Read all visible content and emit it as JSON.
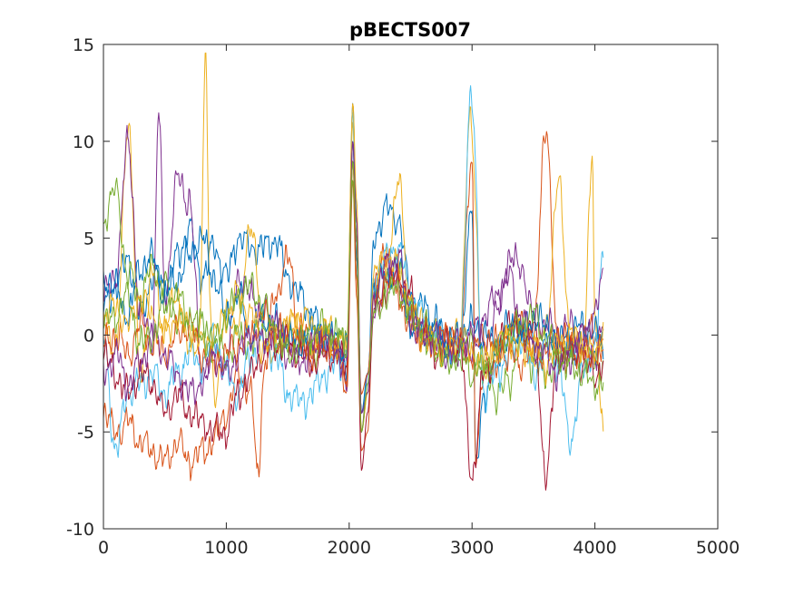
{
  "chart_data": {
    "type": "line",
    "title": "pBECTS007",
    "xlabel": "",
    "ylabel": "",
    "xlim": [
      0,
      5000
    ],
    "ylim": [
      -10,
      15
    ],
    "x_ticks": [
      0,
      1000,
      2000,
      3000,
      4000,
      5000
    ],
    "y_ticks": [
      -10,
      -5,
      0,
      5,
      10,
      15
    ],
    "x_tick_labels": [
      "0",
      "1000",
      "2000",
      "3000",
      "4000",
      "5000"
    ],
    "y_tick_labels": [
      "-10",
      "-5",
      "0",
      "5",
      "10",
      "15"
    ],
    "grid": false,
    "legend": "none",
    "sample_count": 4096,
    "series_colors": [
      "#0072BD",
      "#D95319",
      "#EDB120",
      "#7E2F8E",
      "#77AC30",
      "#4DBEEE",
      "#A2142F"
    ],
    "series": [
      {
        "x": [
          0,
          100,
          200,
          300,
          400,
          500,
          600,
          700,
          800,
          900,
          1000,
          1100,
          1200,
          1300,
          1400,
          1500,
          1600,
          1700,
          1800,
          1900,
          1980,
          2030,
          2060,
          2100,
          2150,
          2200,
          2300,
          2400,
          2500,
          2600,
          2700,
          2800,
          2900,
          3000,
          3030,
          3100,
          3200,
          3300,
          3400,
          3500,
          3600,
          3700,
          3800,
          3900,
          4000,
          4070
        ],
        "y": [
          1.5,
          2.5,
          4,
          1,
          3,
          2.5,
          4,
          5.5,
          3,
          4.5,
          3,
          5,
          4.5,
          4.5,
          5,
          3,
          2,
          1,
          0,
          -0.5,
          -1.5,
          12,
          6,
          -4,
          -3,
          5,
          6.5,
          6,
          2,
          1.5,
          0.5,
          -0.5,
          -0.8,
          7,
          -7,
          -3,
          -1,
          0,
          0.5,
          -0.5,
          -0.5,
          -0.8,
          -0.7,
          -0.5,
          -1,
          -1
        ]
      },
      {
        "x": [
          0,
          100,
          200,
          300,
          400,
          500,
          600,
          700,
          800,
          900,
          1000,
          1100,
          1200,
          1260,
          1300,
          1400,
          1500,
          1600,
          1700,
          1800,
          1900,
          1980,
          2030,
          2060,
          2100,
          2150,
          2200,
          2300,
          2400,
          2500,
          2600,
          2700,
          2800,
          2900,
          3000,
          3030,
          3100,
          3200,
          3300,
          3400,
          3500,
          3600,
          3700,
          3800,
          3900,
          4000,
          4070
        ],
        "y": [
          -4,
          -5,
          -4.5,
          -5.5,
          -6,
          -6.5,
          -5.5,
          -6.5,
          -6,
          -5.5,
          -4,
          -2,
          -3,
          -7.4,
          -2,
          2,
          4,
          0,
          -1,
          -0.5,
          -0.5,
          -3,
          8,
          2,
          -6,
          -5,
          2,
          4.5,
          2,
          0.5,
          0,
          -0.5,
          0,
          -0.5,
          9,
          -6,
          -2,
          -1.5,
          0,
          0.5,
          -0.5,
          11,
          -1,
          -1,
          0,
          0,
          -0.5
        ]
      },
      {
        "x": [
          0,
          100,
          200,
          300,
          400,
          500,
          600,
          700,
          780,
          830,
          870,
          900,
          1000,
          1100,
          1200,
          1300,
          1400,
          1500,
          1600,
          1700,
          1800,
          1900,
          1980,
          2030,
          2060,
          2100,
          2150,
          2200,
          2300,
          2400,
          2500,
          2600,
          2700,
          2800,
          2900,
          2980,
          3100,
          3200,
          3300,
          3400,
          3500,
          3600,
          3700,
          3800,
          3900,
          3980,
          4000,
          4070
        ],
        "y": [
          1,
          -1,
          11,
          -2,
          3,
          0.5,
          2,
          -1,
          0,
          14,
          1.5,
          -3,
          1,
          0.5,
          6,
          0,
          -1,
          0.5,
          0,
          -1,
          0.5,
          -0.5,
          -1,
          11,
          4,
          -4,
          -3,
          3,
          3.5,
          8,
          1,
          0.5,
          0,
          -0.5,
          0,
          11,
          -2,
          -1,
          0,
          0.5,
          -1,
          0,
          8,
          0,
          -1,
          9.4,
          0,
          -5
        ]
      },
      {
        "x": [
          0,
          100,
          200,
          300,
          400,
          450,
          500,
          600,
          700,
          800,
          900,
          1000,
          1100,
          1200,
          1300,
          1400,
          1500,
          1600,
          1700,
          1800,
          1900,
          1980,
          2030,
          2060,
          2100,
          2150,
          2200,
          2300,
          2400,
          2500,
          2600,
          2700,
          2800,
          2900,
          3000,
          3100,
          3200,
          3300,
          3400,
          3500,
          3600,
          3700,
          3800,
          3900,
          4000,
          4070
        ],
        "y": [
          2,
          3,
          10,
          1,
          0,
          11.5,
          2,
          8,
          7,
          -2,
          -1,
          -1.5,
          3,
          2,
          1,
          0.5,
          0,
          -0.5,
          -1,
          -0.5,
          -1,
          -2,
          10,
          5,
          -5,
          -2,
          1,
          3,
          3,
          0.5,
          0,
          0,
          -0.5,
          -1,
          -0.5,
          -0.5,
          1,
          4,
          3.5,
          1,
          0.5,
          0,
          0.5,
          -0.5,
          -1,
          0.5
        ]
      },
      {
        "x": [
          0,
          100,
          200,
          300,
          400,
          500,
          600,
          700,
          800,
          900,
          1000,
          1100,
          1200,
          1300,
          1400,
          1500,
          1600,
          1700,
          1800,
          1900,
          1980,
          2030,
          2060,
          2100,
          2150,
          2200,
          2300,
          2400,
          2500,
          2600,
          2700,
          2800,
          2900,
          3000,
          3100,
          3200,
          3300,
          3400,
          3500,
          3600,
          3700,
          3800,
          3900,
          4000,
          4070
        ],
        "y": [
          6,
          7.5,
          3,
          2,
          3.5,
          2.5,
          1,
          0,
          0.5,
          -0.5,
          -1,
          0,
          -0.5,
          0.5,
          0,
          -0.5,
          0,
          -1,
          -0.5,
          0,
          -0.5,
          8,
          3,
          -5,
          -3,
          2,
          3,
          3.5,
          1,
          0,
          -0.5,
          -1,
          -1,
          -0.5,
          -2,
          -3,
          -2.5,
          0,
          -1.5,
          -2,
          -1.5,
          -1,
          -1,
          -1.5,
          -1.5
        ]
      },
      {
        "x": [
          0,
          100,
          200,
          300,
          400,
          500,
          600,
          700,
          800,
          900,
          1000,
          1100,
          1200,
          1300,
          1400,
          1500,
          1600,
          1700,
          1800,
          1900,
          1980,
          2030,
          2060,
          2100,
          2150,
          2200,
          2300,
          2400,
          2500,
          2600,
          2700,
          2800,
          2900,
          2990,
          3100,
          3200,
          3300,
          3400,
          3500,
          3600,
          3700,
          3800,
          3900,
          4000,
          4070
        ],
        "y": [
          0,
          -6,
          -3,
          -2.5,
          -2,
          -3,
          -2,
          -1,
          -1.5,
          0,
          -2,
          -3,
          -1,
          -0.5,
          -1,
          -3,
          -3.5,
          -3,
          -2,
          -1.5,
          -1,
          11.5,
          5,
          -4,
          -2.5,
          3,
          4,
          4.5,
          2,
          1,
          0,
          -0.5,
          -1,
          12.5,
          -3,
          -2,
          -1,
          0,
          -2,
          -1,
          -1.5,
          -5.5,
          -2,
          -0.5,
          4
        ]
      },
      {
        "x": [
          0,
          100,
          200,
          300,
          400,
          500,
          600,
          700,
          800,
          900,
          1000,
          1100,
          1200,
          1300,
          1400,
          1500,
          1600,
          1700,
          1800,
          1900,
          1980,
          2030,
          2060,
          2100,
          2150,
          2200,
          2300,
          2400,
          2500,
          2600,
          2700,
          2800,
          2900,
          3000,
          3100,
          3200,
          3300,
          3400,
          3500,
          3600,
          3700,
          3800,
          3900,
          4000,
          4070
        ],
        "y": [
          -1,
          -2,
          -3,
          -2,
          -2.5,
          -4,
          -3,
          -4,
          -4.5,
          -5,
          -5,
          -3,
          -2,
          -1,
          -0.5,
          -0.5,
          -1,
          -1.5,
          -1,
          -1,
          -1.5,
          9,
          5,
          -7,
          -4,
          1,
          2.5,
          3,
          2,
          0,
          -1,
          -0.5,
          -0.5,
          -7.2,
          -2,
          -1,
          1,
          0,
          0.5,
          -7,
          -1,
          -1,
          -1.5,
          -2,
          -1.5
        ]
      },
      {
        "x": [
          0,
          100,
          200,
          300,
          400,
          500,
          600,
          700,
          800,
          900,
          1000,
          1100,
          1200,
          1300,
          1400,
          1500,
          1600,
          1700,
          1800,
          1900,
          1980,
          2030,
          2060,
          2100,
          2150,
          2200,
          2300,
          2400,
          2500,
          2600,
          2700,
          2800,
          2900,
          3000,
          3100,
          3200,
          3300,
          3400,
          3500,
          3600,
          3700,
          3800,
          3900,
          4000,
          4070
        ],
        "y": [
          3,
          2.5,
          1,
          3.5,
          4,
          2,
          3,
          4,
          5,
          3,
          1,
          2,
          0,
          1,
          0.5,
          0,
          -0.5,
          0.5,
          0,
          -0.5,
          -1,
          10,
          4,
          -4,
          -2,
          2.5,
          3,
          3.5,
          0.5,
          0,
          0.5,
          -0.5,
          0,
          0.5,
          0,
          -0.5,
          0.5,
          0,
          1,
          0.5,
          -0.5,
          0,
          0.5,
          0,
          0
        ]
      },
      {
        "x": [
          0,
          100,
          200,
          300,
          400,
          500,
          600,
          700,
          800,
          900,
          1000,
          1100,
          1200,
          1300,
          1400,
          1500,
          1600,
          1700,
          1800,
          1900,
          1980,
          2030,
          2060,
          2100,
          2150,
          2200,
          2300,
          2400,
          2500,
          2600,
          2700,
          2800,
          2900,
          3000,
          3100,
          3200,
          3300,
          3400,
          3500,
          3600,
          3700,
          3800,
          3900,
          4000,
          4070
        ],
        "y": [
          -0.5,
          0,
          -1,
          0.5,
          -0.5,
          -1,
          0,
          0.5,
          -1,
          -1.5,
          -1,
          -0.5,
          0,
          1,
          0.5,
          -0.5,
          0,
          -1,
          -0.5,
          -1,
          -2,
          9,
          3,
          -3,
          -2,
          2,
          2.5,
          3,
          1,
          0,
          -0.5,
          0,
          -0.5,
          -1,
          0,
          -0.5,
          -1,
          -1.5,
          -0.5,
          -1,
          0,
          -0.5,
          -1,
          -1,
          -0.5
        ]
      },
      {
        "x": [
          0,
          100,
          200,
          300,
          400,
          500,
          600,
          700,
          800,
          900,
          1000,
          1100,
          1200,
          1300,
          1400,
          1500,
          1600,
          1700,
          1800,
          1900,
          1980,
          2030,
          2060,
          2100,
          2150,
          2200,
          2300,
          2400,
          2500,
          2600,
          2700,
          2800,
          2900,
          3000,
          3100,
          3200,
          3300,
          3400,
          3500,
          3600,
          3700,
          3800,
          3900,
          4000,
          4070
        ],
        "y": [
          1,
          1.5,
          0.5,
          2,
          1,
          0,
          1,
          0.5,
          -0.5,
          0,
          1,
          2,
          1,
          -0.5,
          0,
          0.5,
          1,
          0.5,
          0,
          -0.5,
          -0.5,
          12,
          7,
          -5,
          -3,
          3,
          4,
          3.5,
          1.5,
          0,
          -0.5,
          -1,
          0,
          -1,
          -1.5,
          -0.5,
          0,
          -1,
          -0.5,
          -1.5,
          -0.5,
          0,
          -0.5,
          -1,
          0.5
        ]
      },
      {
        "x": [
          0,
          100,
          200,
          300,
          400,
          500,
          600,
          700,
          800,
          900,
          1000,
          1100,
          1200,
          1300,
          1400,
          1500,
          1600,
          1700,
          1800,
          1900,
          1980,
          2030,
          2060,
          2100,
          2150,
          2200,
          2300,
          2400,
          2500,
          2600,
          2700,
          2800,
          2900,
          3000,
          3100,
          3200,
          3300,
          3400,
          3500,
          3600,
          3700,
          3800,
          3900,
          4000,
          4070
        ],
        "y": [
          -2,
          -1,
          -2.5,
          -1.5,
          0,
          -1,
          -2,
          -3,
          -2.5,
          -1,
          -2,
          -1,
          0,
          -0.5,
          0.5,
          -1,
          -1.5,
          -0.5,
          0,
          -1,
          -1.5,
          10,
          6,
          -4,
          -3,
          2,
          3.5,
          4,
          1,
          0,
          0,
          -1,
          -0.5,
          0,
          1,
          2,
          3,
          1,
          -0.5,
          -1,
          -2,
          -1,
          0,
          1,
          3
        ]
      },
      {
        "x": [
          0,
          100,
          200,
          300,
          400,
          500,
          600,
          700,
          800,
          900,
          1000,
          1100,
          1200,
          1300,
          1400,
          1500,
          1600,
          1700,
          1800,
          1900,
          1980,
          2030,
          2060,
          2100,
          2150,
          2200,
          2300,
          2400,
          2500,
          2600,
          2700,
          2800,
          2900,
          3000,
          3100,
          3200,
          3300,
          3400,
          3500,
          3600,
          3700,
          3800,
          3900,
          4000,
          4070
        ],
        "y": [
          0.5,
          1,
          2,
          -0.5,
          0,
          1.5,
          2,
          1,
          0,
          -0.5,
          1,
          2,
          2.5,
          1.5,
          0,
          -1,
          -0.5,
          0,
          0.5,
          0,
          -0.5,
          9,
          5,
          -5,
          -2.5,
          1,
          2,
          2.5,
          1,
          0.5,
          -0.5,
          -1.5,
          -1,
          -2,
          -1.5,
          -1,
          0,
          0.5,
          1,
          0,
          -1,
          -1.5,
          -2,
          -2.5,
          -2.5
        ]
      }
    ]
  }
}
